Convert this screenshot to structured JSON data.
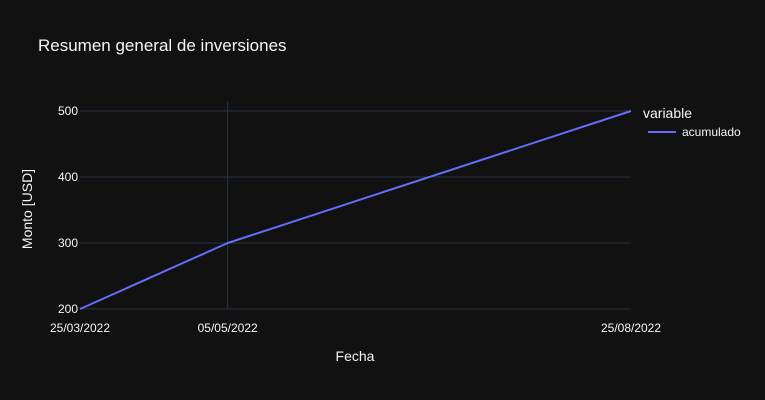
{
  "chart_data": {
    "type": "line",
    "title": "Resumen general de inversiones",
    "xlabel": "Fecha",
    "ylabel": "Monto [USD]",
    "x": [
      "25/03/2022",
      "05/05/2022",
      "25/08/2022"
    ],
    "series": [
      {
        "name": "acumulado",
        "values": [
          200,
          300,
          500
        ],
        "color": "#636efa"
      }
    ],
    "ylim": [
      200,
      500
    ],
    "yticks": [
      200,
      300,
      400,
      500
    ],
    "legend_title": "variable",
    "legend_position": "top-right",
    "grid": true,
    "colors": {
      "background": "#111111",
      "grid": "#283442",
      "text": "#f2f5fa"
    }
  }
}
